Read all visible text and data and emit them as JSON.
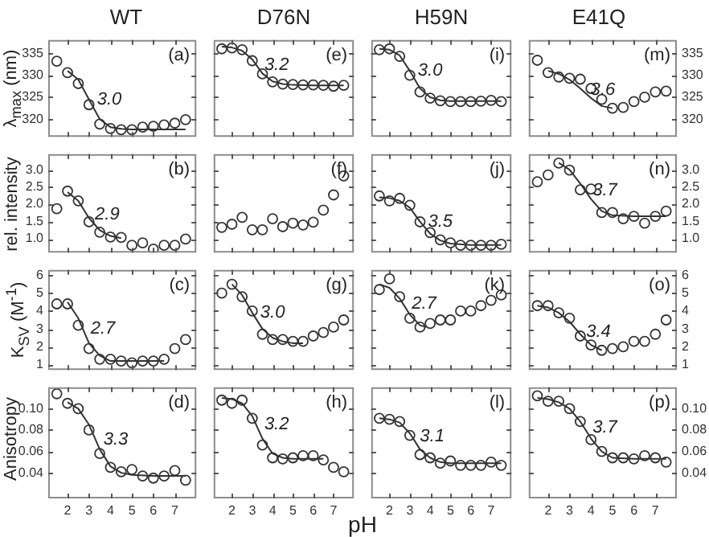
{
  "chart_data": [
    {
      "type": "scatter",
      "title": "WT",
      "ylabel": "λ$_{max}$ (nm)",
      "xlim": [
        1.1,
        8.0
      ],
      "xticks": [
        2,
        3,
        4,
        5,
        6,
        7
      ],
      "ylim": [
        316,
        338
      ],
      "yticks": [
        320,
        325,
        330,
        335
      ],
      "tick_labels": "y",
      "marker": "circle",
      "annotations": [
        "(a)",
        {
          "text": "3.0",
          "x": 3.0,
          "y": 324.5
        }
      ],
      "series": [
        {
          "type": "scatter",
          "color": "#333333",
          "x": [
            1.5,
            2,
            2.5,
            3,
            3.5,
            4,
            4.5,
            5,
            5.5,
            6,
            6.5,
            7,
            7.5
          ],
          "values": [
            333.2,
            330.6,
            328.1,
            323.3,
            318.9,
            317.9,
            317.6,
            317.6,
            318.2,
            318.4,
            318.7,
            319.1,
            319.9
          ]
        },
        {
          "type": "line",
          "marker": "none",
          "color": "#333333",
          "x": [
            2,
            2.5,
            3,
            3.5,
            4,
            4.5,
            5,
            6,
            7,
            7.5
          ],
          "values": [
            331,
            329,
            324.5,
            320,
            318.2,
            317.8,
            317.7,
            317.7,
            317.7,
            317.7
          ]
        }
      ]
    },
    {
      "type": "scatter",
      "title": "D76N",
      "xlim": [
        1.1,
        8.0
      ],
      "xticks": [
        2,
        3,
        4,
        5,
        6,
        7
      ],
      "ylim": [
        316,
        338
      ],
      "yticks": [
        320,
        325,
        330,
        335
      ],
      "tick_labels": false,
      "marker": "circle",
      "annotations": [
        "(e)",
        {
          "text": "3.2",
          "x": 3.2,
          "y": 332.3
        }
      ],
      "series": [
        {
          "type": "scatter",
          "color": "#333333",
          "x": [
            1.5,
            2,
            2.5,
            3,
            3.5,
            4,
            4.5,
            5,
            5.5,
            6,
            6.5,
            7,
            7.5
          ],
          "values": [
            336.0,
            336.2,
            335.8,
            333.3,
            330.3,
            328.5,
            328.0,
            327.9,
            327.8,
            327.8,
            327.7,
            327.5,
            327.7
          ]
        },
        {
          "type": "line",
          "marker": "none",
          "color": "#333333",
          "x": [
            1.5,
            2,
            2.5,
            3,
            3.5,
            4,
            4.5,
            5,
            6,
            7,
            7.5
          ],
          "values": [
            336.5,
            336.3,
            335.6,
            333.6,
            330.4,
            328.6,
            328,
            327.8,
            327.7,
            327.7,
            327.7
          ]
        }
      ]
    },
    {
      "type": "scatter",
      "title": "H59N",
      "xlim": [
        1.1,
        8.0
      ],
      "xticks": [
        2,
        3,
        4,
        5,
        6,
        7
      ],
      "ylim": [
        316,
        338
      ],
      "yticks": [
        320,
        325,
        330,
        335
      ],
      "tick_labels": false,
      "marker": "circle",
      "annotations": [
        "(i)",
        {
          "text": "3.0",
          "x": 3.0,
          "y": 331
        }
      ],
      "series": [
        {
          "type": "scatter",
          "color": "#333333",
          "x": [
            1.5,
            2,
            2.5,
            3,
            3.5,
            4,
            4.5,
            5,
            5.5,
            6,
            6.5,
            7,
            7.5
          ],
          "values": [
            335.8,
            336.0,
            334.3,
            330.0,
            326.2,
            324.8,
            324.2,
            324.0,
            324.0,
            324.0,
            324.1,
            324.3,
            324.0
          ]
        },
        {
          "type": "line",
          "marker": "none",
          "color": "#333333",
          "x": [
            1.5,
            2,
            2.5,
            3,
            3.5,
            4,
            4.5,
            5,
            6,
            7,
            7.5
          ],
          "values": [
            336,
            335.8,
            334.5,
            331,
            327,
            325,
            324.3,
            324.1,
            324.1,
            324.1,
            324.1
          ]
        }
      ]
    },
    {
      "type": "scatter",
      "title": "E41Q",
      "xlim": [
        1.1,
        8.0
      ],
      "xticks": [
        2,
        3,
        4,
        5,
        6,
        7
      ],
      "ylim": [
        316,
        338
      ],
      "yticks": [
        320,
        325,
        330,
        335
      ],
      "tick_labels": "y",
      "marker": "circle",
      "annotations": [
        "(m)",
        {
          "text": "3.6",
          "x": 3.6,
          "y": 326.6
        }
      ],
      "series": [
        {
          "type": "scatter",
          "color": "#333333",
          "x": [
            1.5,
            2,
            2.5,
            3,
            3.5,
            4,
            4.5,
            5,
            5.5,
            6,
            6.5,
            7,
            7.5
          ],
          "values": [
            333.4,
            330.6,
            329.6,
            329.3,
            329.1,
            327.0,
            324.5,
            322.5,
            322.7,
            324.0,
            325.0,
            326.2,
            326.4
          ]
        },
        {
          "type": "line",
          "marker": "none",
          "color": "#333333",
          "x": [
            2,
            2.5,
            3,
            3.5,
            4,
            4.5,
            5
          ],
          "values": [
            331,
            330.3,
            329,
            327,
            324.8,
            323,
            322.5
          ]
        }
      ]
    },
    {
      "type": "scatter",
      "ylabel": "rel. intensity",
      "xlim": [
        1.1,
        8.0
      ],
      "xticks": [
        2,
        3,
        4,
        5,
        6,
        7
      ],
      "ylim": [
        0.6,
        3.45
      ],
      "yticks": [
        {
          "value": 1,
          "label": "1.0"
        },
        1.5,
        {
          "value": 2,
          "label": "2.0"
        },
        2.5,
        {
          "value": 3,
          "label": "3.0"
        }
      ],
      "tick_labels": "y",
      "marker": "circle",
      "annotations": [
        "(b)",
        {
          "text": "2.9",
          "x": 2.9,
          "y": 1.7
        }
      ],
      "series": [
        {
          "type": "scatter",
          "color": "#333333",
          "x": [
            1.5,
            2,
            2.5,
            3,
            3.5,
            4,
            4.5,
            5,
            5.5,
            6,
            6.5,
            7,
            7.5
          ],
          "values": [
            1.87,
            2.38,
            2.1,
            1.49,
            1.19,
            1.05,
            1.04,
            0.81,
            0.88,
            0.7,
            0.81,
            0.81,
            0.99
          ]
        },
        {
          "type": "line",
          "marker": "none",
          "color": "#333333",
          "x": [
            2,
            2.5,
            3,
            3.5,
            4,
            4.5
          ],
          "values": [
            2.35,
            2.1,
            1.6,
            1.25,
            1.08,
            1.02
          ]
        }
      ]
    },
    {
      "type": "scatter",
      "xlim": [
        1.1,
        8.0
      ],
      "xticks": [
        2,
        3,
        4,
        5,
        6,
        7
      ],
      "ylim": [
        0.6,
        3.45
      ],
      "yticks": [
        1,
        1.5,
        2,
        2.5,
        3
      ],
      "tick_labels": false,
      "marker": "circle",
      "annotations": [
        "(f)"
      ],
      "series": [
        {
          "type": "scatter",
          "color": "#333333",
          "x": [
            1.5,
            2,
            2.5,
            3,
            3.5,
            4,
            4.5,
            5,
            5.5,
            6,
            6.5,
            7,
            7.5
          ],
          "values": [
            1.33,
            1.42,
            1.62,
            1.26,
            1.26,
            1.58,
            1.35,
            1.45,
            1.4,
            1.48,
            1.83,
            2.27,
            2.82
          ]
        }
      ]
    },
    {
      "type": "scatter",
      "xlim": [
        1.1,
        8.0
      ],
      "xticks": [
        2,
        3,
        4,
        5,
        6,
        7
      ],
      "ylim": [
        0.6,
        3.45
      ],
      "yticks": [
        1,
        1.5,
        2,
        2.5,
        3
      ],
      "tick_labels": false,
      "marker": "circle",
      "annotations": [
        "(j)",
        {
          "text": "3.5",
          "x": 3.5,
          "y": 1.5
        }
      ],
      "series": [
        {
          "type": "scatter",
          "color": "#333333",
          "x": [
            1.5,
            2,
            2.5,
            3,
            3.5,
            4,
            4.5,
            5,
            5.5,
            6,
            6.5,
            7,
            7.5
          ],
          "values": [
            2.24,
            2.1,
            2.17,
            1.97,
            1.49,
            1.18,
            0.97,
            0.88,
            0.81,
            0.81,
            0.81,
            0.81,
            0.84
          ]
        },
        {
          "type": "line",
          "marker": "none",
          "color": "#333333",
          "x": [
            1.5,
            2,
            2.5,
            3,
            3.5,
            4,
            4.5,
            5,
            6,
            7,
            7.5
          ],
          "values": [
            2.2,
            2.18,
            2.1,
            1.9,
            1.5,
            1.15,
            0.95,
            0.86,
            0.82,
            0.82,
            0.82
          ]
        }
      ]
    },
    {
      "type": "scatter",
      "xlim": [
        1.1,
        8.0
      ],
      "xticks": [
        2,
        3,
        4,
        5,
        6,
        7
      ],
      "ylim": [
        0.6,
        3.45
      ],
      "yticks": [
        {
          "value": 1,
          "label": "1.0"
        },
        1.5,
        {
          "value": 2,
          "label": "2.0"
        },
        2.5,
        {
          "value": 3,
          "label": "3.0"
        }
      ],
      "tick_labels": "y",
      "marker": "circle",
      "annotations": [
        "(n)",
        {
          "text": "3.7",
          "x": 3.7,
          "y": 2.4
        }
      ],
      "series": [
        {
          "type": "scatter",
          "color": "#333333",
          "x": [
            1.5,
            2,
            2.5,
            3,
            3.5,
            4,
            4.5,
            5,
            5.5,
            6,
            6.5,
            7,
            7.5
          ],
          "values": [
            2.65,
            2.85,
            3.19,
            2.99,
            2.42,
            2.44,
            1.76,
            1.76,
            1.58,
            1.65,
            1.45,
            1.65,
            1.8
          ]
        },
        {
          "type": "line",
          "marker": "none",
          "color": "#333333",
          "x": [
            2.5,
            3,
            3.5,
            4,
            4.5,
            5,
            6,
            7,
            7.5
          ],
          "values": [
            3.2,
            3.0,
            2.6,
            2.15,
            1.8,
            1.68,
            1.65,
            1.65,
            1.65
          ]
        }
      ]
    },
    {
      "type": "scatter",
      "ylabel": "K$_{SV}$ (M$^{-1}$)",
      "xlim": [
        1.1,
        8.0
      ],
      "xticks": [
        2,
        3,
        4,
        5,
        6,
        7
      ],
      "ylim": [
        0.7,
        6.3
      ],
      "yticks": [
        1,
        2,
        3,
        4,
        5,
        6
      ],
      "tick_labels": "y",
      "marker": "circle",
      "annotations": [
        "(c)",
        {
          "text": "2.7",
          "x": 2.7,
          "y": 3.0
        }
      ],
      "series": [
        {
          "type": "scatter",
          "color": "#333333",
          "x": [
            1.5,
            2,
            2.5,
            3,
            3.5,
            4,
            4.5,
            5,
            5.5,
            6,
            6.5,
            7,
            7.5
          ],
          "values": [
            4.4,
            4.4,
            3.2,
            1.9,
            1.3,
            1.3,
            1.2,
            1.1,
            1.2,
            1.2,
            1.3,
            1.9,
            2.4
          ]
        },
        {
          "type": "line",
          "marker": "none",
          "color": "#333333",
          "x": [
            2,
            2.5,
            3,
            3.5,
            4,
            4.5,
            5,
            6,
            6.5
          ],
          "values": [
            4.5,
            3.6,
            2.2,
            1.5,
            1.2,
            1.2,
            1.2,
            1.2,
            1.2
          ]
        }
      ]
    },
    {
      "type": "scatter",
      "xlim": [
        1.1,
        8.0
      ],
      "xticks": [
        2,
        3,
        4,
        5,
        6,
        7
      ],
      "ylim": [
        0.7,
        6.3
      ],
      "yticks": [
        1,
        2,
        3,
        4,
        5,
        6
      ],
      "tick_labels": false,
      "marker": "circle",
      "annotations": [
        "(g)",
        {
          "text": "3.0",
          "x": 3.0,
          "y": 3.9
        }
      ],
      "series": [
        {
          "type": "scatter",
          "color": "#333333",
          "x": [
            1.5,
            2,
            2.5,
            3,
            3.5,
            4,
            4.5,
            5,
            5.5,
            6,
            6.5,
            7,
            7.5
          ],
          "values": [
            5.0,
            5.5,
            4.8,
            4.0,
            2.7,
            2.4,
            2.4,
            2.3,
            2.3,
            2.6,
            2.8,
            3.1,
            3.5
          ]
        },
        {
          "type": "line",
          "marker": "none",
          "color": "#333333",
          "x": [
            2,
            2.5,
            3,
            3.5,
            4,
            4.5,
            5,
            5.5
          ],
          "values": [
            5.5,
            4.9,
            3.9,
            3.0,
            2.5,
            2.3,
            2.2,
            2.2
          ]
        }
      ]
    },
    {
      "type": "scatter",
      "xlim": [
        1.1,
        8.0
      ],
      "xticks": [
        2,
        3,
        4,
        5,
        6,
        7
      ],
      "ylim": [
        0.7,
        6.3
      ],
      "yticks": [
        1,
        2,
        3,
        4,
        5,
        6
      ],
      "tick_labels": false,
      "marker": "circle",
      "annotations": [
        "(k)",
        {
          "text": "2.7",
          "x": 2.7,
          "y": 4.4
        }
      ],
      "series": [
        {
          "type": "scatter",
          "color": "#333333",
          "x": [
            1.5,
            2,
            2.5,
            3,
            3.5,
            4,
            4.5,
            5,
            5.5,
            6,
            6.5,
            7,
            7.5
          ],
          "values": [
            5.2,
            5.8,
            4.8,
            3.6,
            3.1,
            3.3,
            3.5,
            3.5,
            4.0,
            4.0,
            4.3,
            4.6,
            4.9
          ]
        },
        {
          "type": "line",
          "marker": "none",
          "color": "#333333",
          "x": [
            1.5,
            2,
            2.5,
            3,
            3.5,
            3.8
          ],
          "values": [
            5.5,
            5.3,
            4.7,
            3.8,
            3.2,
            3.1
          ]
        }
      ]
    },
    {
      "type": "scatter",
      "xlim": [
        1.1,
        8.0
      ],
      "xticks": [
        2,
        3,
        4,
        5,
        6,
        7
      ],
      "ylim": [
        0.7,
        6.3
      ],
      "yticks": [
        1,
        2,
        3,
        4,
        5,
        6
      ],
      "tick_labels": "y",
      "marker": "circle",
      "annotations": [
        "(o)",
        {
          "text": "3.4",
          "x": 3.4,
          "y": 2.84
        }
      ],
      "series": [
        {
          "type": "scatter",
          "color": "#333333",
          "x": [
            1.5,
            2,
            2.5,
            3,
            3.5,
            4,
            4.5,
            5,
            5.5,
            6,
            6.5,
            7,
            7.5
          ],
          "values": [
            4.3,
            4.3,
            3.9,
            3.6,
            2.6,
            2.1,
            1.8,
            1.9,
            2.0,
            2.3,
            2.3,
            2.7,
            3.5
          ]
        },
        {
          "type": "line",
          "marker": "none",
          "color": "#333333",
          "x": [
            1.5,
            2,
            2.5,
            3,
            3.5,
            4,
            4.5
          ],
          "values": [
            4.3,
            4.2,
            3.9,
            3.4,
            2.7,
            2.1,
            1.8
          ]
        }
      ]
    },
    {
      "type": "scatter",
      "ylabel": "Anisotropy",
      "xlim": [
        1.1,
        8.0
      ],
      "xticks": [
        2,
        3,
        4,
        5,
        6,
        7
      ],
      "ylim": [
        0.016,
        0.12
      ],
      "yticks": [
        0.04,
        0.06,
        0.08,
        {
          "value": 0.1,
          "label": "0.10"
        }
      ],
      "marker": "circle",
      "annotations": [
        "(d)",
        {
          "text": "3.3",
          "x": 3.3,
          "y": 0.071
        }
      ],
      "series": [
        {
          "type": "scatter",
          "color": "#333333",
          "x": [
            1.5,
            2,
            2.5,
            3,
            3.5,
            4,
            4.5,
            5,
            5.5,
            6,
            6.5,
            7,
            7.5
          ],
          "values": [
            0.114,
            0.105,
            0.1,
            0.08,
            0.058,
            0.045,
            0.041,
            0.043,
            0.037,
            0.035,
            0.037,
            0.042,
            0.033
          ]
        },
        {
          "type": "line",
          "marker": "none",
          "color": "#333333",
          "x": [
            2,
            2.5,
            3,
            3.5,
            4,
            4.5,
            5,
            6,
            7,
            7.5
          ],
          "values": [
            0.106,
            0.1,
            0.085,
            0.062,
            0.046,
            0.04,
            0.038,
            0.037,
            0.037,
            0.037
          ]
        }
      ]
    },
    {
      "type": "scatter",
      "xlabel": "pH",
      "xlim": [
        1.1,
        8.0
      ],
      "xticks": [
        2,
        3,
        4,
        5,
        6,
        7
      ],
      "ylim": [
        0.016,
        0.12
      ],
      "yticks": [
        0.04,
        0.06,
        0.08,
        0.1
      ],
      "tick_labels": "x",
      "marker": "circle",
      "annotations": [
        "(h)",
        {
          "text": "3.2",
          "x": 3.2,
          "y": 0.085
        }
      ],
      "series": [
        {
          "type": "scatter",
          "color": "#333333",
          "x": [
            1.5,
            2,
            2.5,
            3,
            3.5,
            4,
            4.5,
            5,
            5.5,
            6,
            6.5,
            7,
            7.5
          ],
          "values": [
            0.108,
            0.105,
            0.108,
            0.091,
            0.066,
            0.054,
            0.053,
            0.054,
            0.056,
            0.056,
            0.052,
            0.045,
            0.041
          ]
        },
        {
          "type": "line",
          "marker": "none",
          "color": "#333333",
          "x": [
            1.5,
            2,
            2.5,
            3,
            3.5,
            4,
            4.5,
            5,
            6,
            6.5
          ],
          "values": [
            0.11,
            0.109,
            0.105,
            0.093,
            0.072,
            0.058,
            0.054,
            0.053,
            0.053,
            0.053
          ]
        }
      ]
    },
    {
      "type": "scatter",
      "xlim": [
        1.1,
        8.0
      ],
      "xticks": [
        2,
        3,
        4,
        5,
        6,
        7
      ],
      "ylim": [
        0.016,
        0.12
      ],
      "yticks": [
        0.04,
        0.06,
        0.08,
        0.1
      ],
      "tick_labels": "x",
      "marker": "circle",
      "annotations": [
        "(l)",
        {
          "text": "3.1",
          "x": 3.1,
          "y": 0.074
        }
      ],
      "series": [
        {
          "type": "scatter",
          "color": "#333333",
          "x": [
            1.5,
            2,
            2.5,
            3,
            3.5,
            4,
            4.5,
            5,
            5.5,
            6,
            6.5,
            7,
            7.5
          ],
          "values": [
            0.091,
            0.09,
            0.088,
            0.075,
            0.057,
            0.054,
            0.049,
            0.051,
            0.047,
            0.047,
            0.047,
            0.05,
            0.047
          ]
        },
        {
          "type": "line",
          "marker": "none",
          "color": "#333333",
          "x": [
            1.5,
            2,
            2.5,
            3,
            3.5,
            4,
            4.5,
            5,
            6,
            7,
            7.5
          ],
          "values": [
            0.091,
            0.09,
            0.087,
            0.077,
            0.062,
            0.054,
            0.05,
            0.049,
            0.049,
            0.049,
            0.049
          ]
        }
      ]
    },
    {
      "type": "scatter",
      "xlim": [
        1.1,
        8.0
      ],
      "xticks": [
        2,
        3,
        4,
        5,
        6,
        7
      ],
      "ylim": [
        0.016,
        0.12
      ],
      "yticks": [
        0.04,
        0.06,
        0.08,
        {
          "value": 0.1,
          "label": "0.10"
        }
      ],
      "marker": "circle",
      "annotations": [
        "(p)",
        {
          "text": "3.7",
          "x": 3.7,
          "y": 0.082
        }
      ],
      "series": [
        {
          "type": "scatter",
          "color": "#333333",
          "x": [
            1.5,
            2,
            2.5,
            3,
            3.5,
            4,
            4.5,
            5,
            5.5,
            6,
            6.5,
            7,
            7.5
          ],
          "values": [
            0.112,
            0.107,
            0.107,
            0.1,
            0.088,
            0.071,
            0.06,
            0.054,
            0.054,
            0.053,
            0.056,
            0.054,
            0.05
          ]
        },
        {
          "type": "line",
          "marker": "none",
          "color": "#333333",
          "x": [
            1.5,
            2,
            2.5,
            3,
            3.5,
            4,
            4.5,
            5,
            6,
            7,
            7.5
          ],
          "values": [
            0.11,
            0.109,
            0.106,
            0.1,
            0.088,
            0.072,
            0.06,
            0.054,
            0.053,
            0.053,
            0.053
          ]
        }
      ]
    }
  ]
}
